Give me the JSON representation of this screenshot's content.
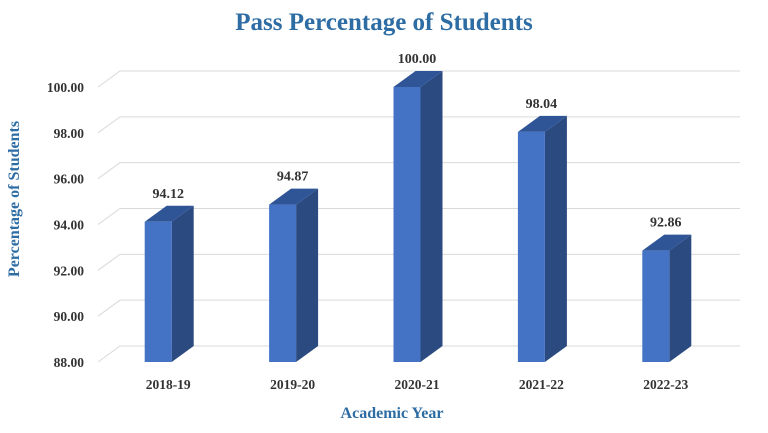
{
  "chart_data": {
    "type": "bar",
    "title": "Pass Percentage of Students",
    "xlabel": "Academic Year",
    "ylabel": "Percentage of Students",
    "categories": [
      "2018-19",
      "2019-20",
      "2020-21",
      "2021-22",
      "2022-23"
    ],
    "values": [
      94.12,
      94.87,
      100.0,
      98.04,
      92.86
    ],
    "data_labels": [
      "94.12",
      "94.87",
      "100.00",
      "98.04",
      "92.86"
    ],
    "ylim": [
      88,
      100
    ],
    "yticks": [
      "88.00",
      "90.00",
      "92.00",
      "94.00",
      "96.00",
      "98.00",
      "100.00"
    ],
    "grid": true,
    "legend": "none",
    "colors": {
      "bar_front": "#4472c4",
      "bar_side": "#2a4a80",
      "bar_top": "#2f5597"
    }
  }
}
